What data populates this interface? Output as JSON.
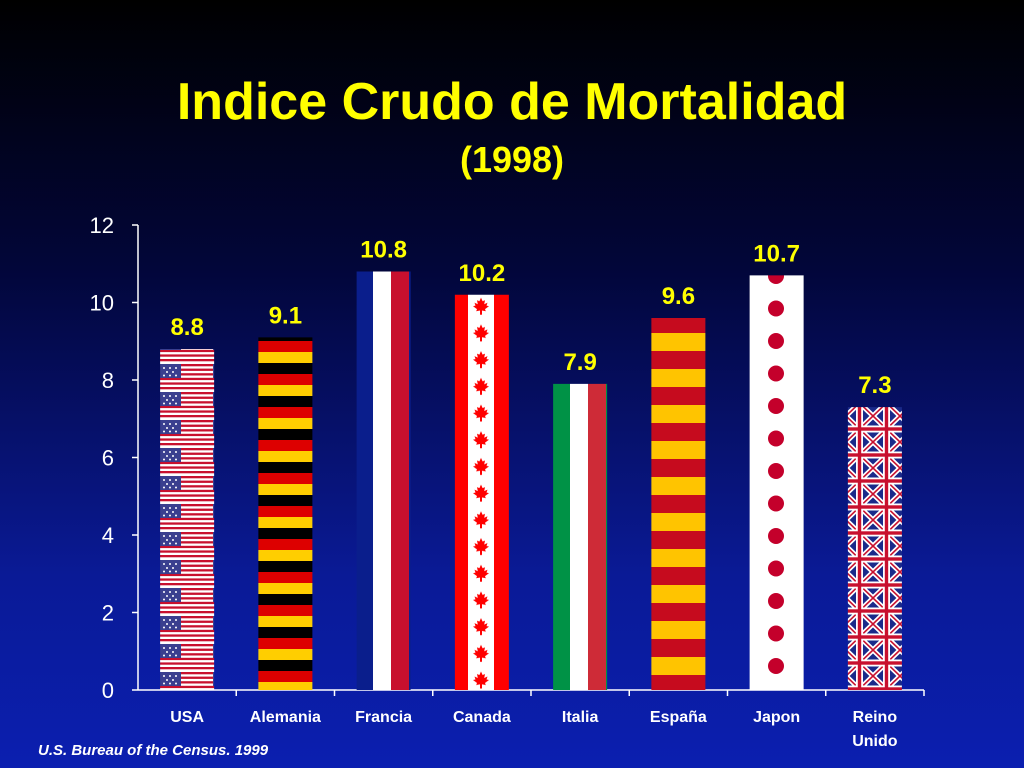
{
  "chart_data": {
    "type": "bar",
    "title": "Indice Crudo de Mortalidad",
    "subtitle": "(1998)",
    "categories": [
      "USA",
      "Alemania",
      "Francia",
      "Canada",
      "Italia",
      "España",
      "Japon",
      "Reino Unido"
    ],
    "values": [
      8.8,
      9.1,
      10.8,
      10.2,
      7.9,
      9.6,
      10.7,
      7.3
    ],
    "value_labels": [
      "8.8",
      "9.1",
      "10.8",
      "10.2",
      "7.9",
      "9.6",
      "10.7",
      "7.3"
    ],
    "bar_patterns": [
      "usa-flag",
      "germany-flag",
      "france-flag",
      "canada-flag",
      "italy-flag",
      "spain-flag",
      "japan-flag",
      "uk-flag"
    ],
    "xlabel": "",
    "ylabel": "",
    "ylim": [
      0,
      12
    ],
    "yticks": [
      0,
      2,
      4,
      6,
      8,
      10,
      12
    ],
    "grid": false,
    "colors": {
      "title": "#ffff00",
      "axis_text": "#ffffff",
      "value_label": "#ffff00"
    }
  },
  "source": "U.S. Bureau of the Census. 1999"
}
